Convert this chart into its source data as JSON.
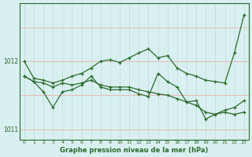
{
  "xlabel": "Graphe pression niveau de la mer (hPa)",
  "x": [
    0,
    1,
    2,
    3,
    4,
    5,
    6,
    7,
    8,
    9,
    10,
    11,
    12,
    13,
    14,
    15,
    16,
    17,
    18,
    19,
    20,
    21,
    22,
    23
  ],
  "line1": [
    1012.0,
    1011.75,
    1011.72,
    1011.68,
    1011.72,
    1011.78,
    1011.82,
    1011.9,
    1012.0,
    1012.02,
    1011.98,
    1012.05,
    1012.12,
    1012.18,
    1012.05,
    1012.08,
    1011.9,
    1011.82,
    1011.78,
    1011.72,
    1011.7,
    1011.68,
    1012.12,
    1012.68
  ],
  "line2": [
    1011.78,
    1011.7,
    1011.68,
    1011.62,
    1011.68,
    1011.65,
    1011.68,
    1011.72,
    1011.65,
    1011.62,
    1011.62,
    1011.62,
    1011.58,
    1011.55,
    1011.52,
    1011.5,
    1011.45,
    1011.4,
    1011.35,
    1011.25,
    1011.22,
    1011.28,
    1011.32,
    1011.42
  ],
  "line3": [
    1011.78,
    1011.7,
    1011.55,
    1011.32,
    1011.55,
    1011.58,
    1011.65,
    1011.78,
    1011.62,
    1011.58,
    1011.58,
    1011.58,
    1011.52,
    1011.48,
    1011.82,
    1011.7,
    1011.62,
    1011.4,
    1011.42,
    1011.15,
    1011.22,
    1011.25,
    1011.22,
    1011.25
  ],
  "line_color": "#2d6a2d",
  "bg_color": "#d8f0f0",
  "grid_color_v": "#c8dede",
  "grid_color_h": "#e8b8b8",
  "tick_color": "#2d6a2d",
  "ylim": [
    1010.85,
    1012.85
  ],
  "yticks": [
    1011,
    1012
  ],
  "xticks": [
    0,
    1,
    2,
    3,
    4,
    5,
    6,
    7,
    8,
    9,
    10,
    11,
    12,
    13,
    14,
    15,
    16,
    17,
    18,
    19,
    20,
    21,
    22,
    23
  ]
}
